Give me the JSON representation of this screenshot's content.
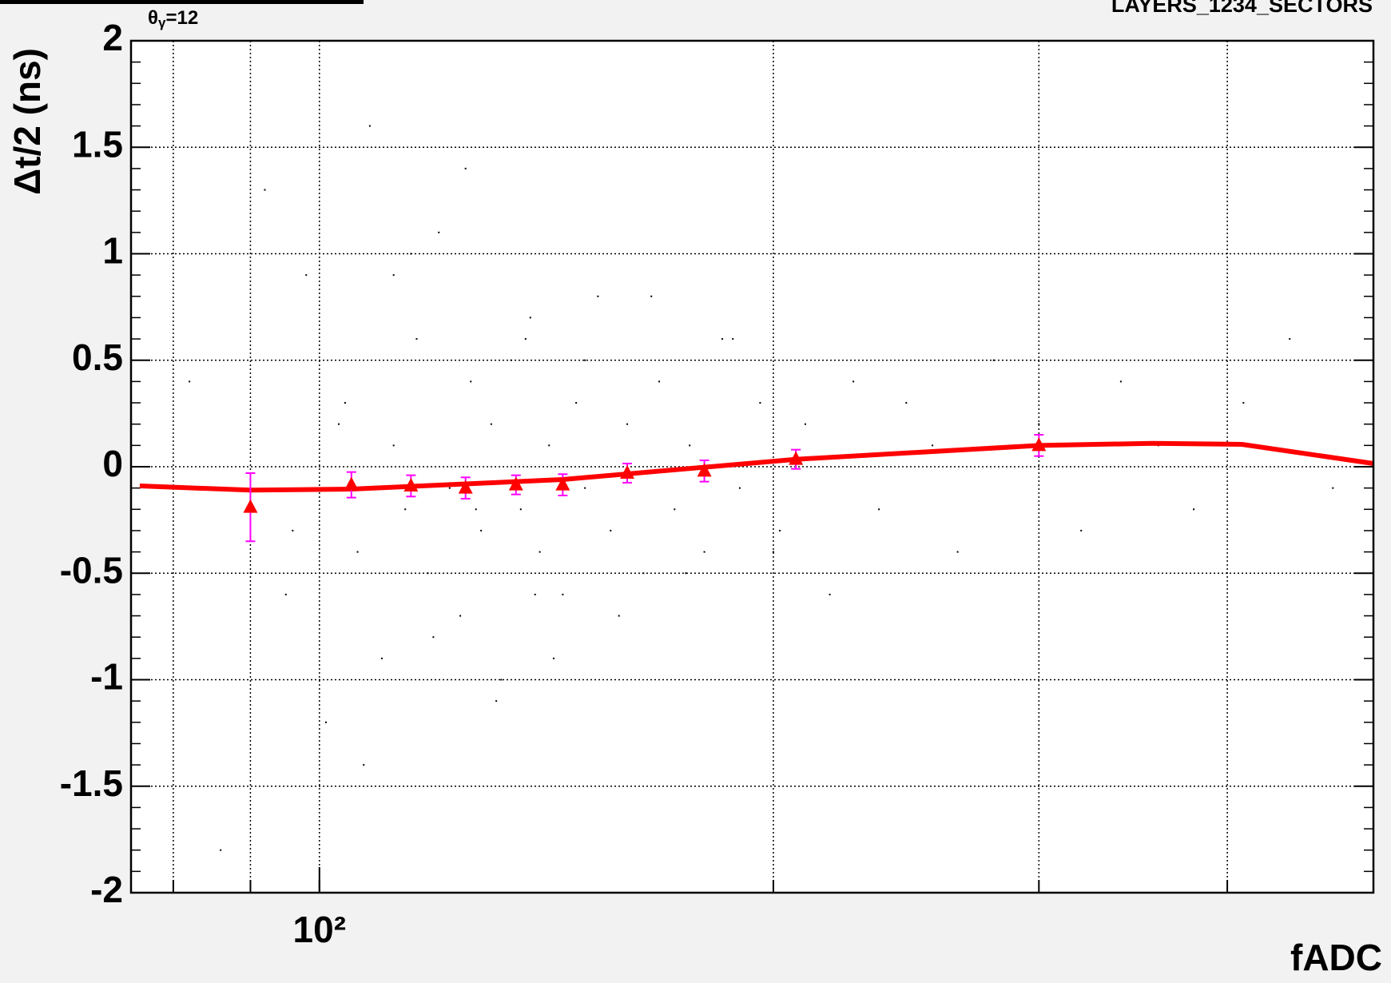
{
  "chart_data": {
    "type": "scatter",
    "annotation": {
      "symbol": "θ",
      "subscript": "γ",
      "rest": "=12"
    },
    "corner_label": "LAYERS_1234_SECTORS",
    "x_label": "fADC",
    "y_label": "Δt/2 (ns)",
    "xscale": "log",
    "xlim": [
      75,
      500
    ],
    "ylim": [
      -2,
      2
    ],
    "xticks": [
      {
        "value": 100,
        "label": "10²"
      }
    ],
    "xgrid": [
      80,
      90,
      100,
      200,
      300,
      400,
      500
    ],
    "yticks": [
      -2,
      -1.5,
      -1,
      -0.5,
      0,
      0.5,
      1,
      1.5,
      2
    ],
    "grid": true,
    "scatter": {
      "color": "#000000",
      "x": [
        82,
        86,
        92,
        95,
        98,
        101,
        104,
        106,
        108,
        110,
        112,
        114,
        116,
        118,
        120,
        122,
        124,
        126,
        128,
        130,
        132,
        134,
        136,
        138,
        140,
        142,
        145,
        148,
        150,
        153,
        156,
        160,
        164,
        168,
        172,
        176,
        180,
        185,
        190,
        196,
        202,
        210,
        218,
        226,
        235,
        245,
        255,
        265,
        280,
        300,
        320,
        340,
        360,
        380,
        410,
        440,
        470,
        107,
        112,
        119,
        125,
        131,
        137,
        143,
        150,
        158,
        166,
        175,
        188,
        200,
        96,
        103,
        115,
        127,
        139
      ],
      "y": [
        0.4,
        -1.8,
        1.3,
        -0.6,
        0.9,
        -1.2,
        0.3,
        -0.4,
        1.6,
        -0.9,
        0.1,
        -0.2,
        0.6,
        -0.5,
        1.1,
        -0.1,
        -0.7,
        0.4,
        -0.3,
        0.2,
        -1.0,
        0.5,
        -0.2,
        0.7,
        -0.4,
        0.1,
        -0.6,
        0.3,
        -0.1,
        0.8,
        -0.3,
        0.2,
        -0.5,
        0.4,
        -0.2,
        0.1,
        -0.4,
        0.6,
        -0.1,
        0.3,
        -0.3,
        0.2,
        -0.6,
        0.4,
        -0.2,
        0.3,
        0.1,
        -0.4,
        0.5,
        0.2,
        -0.3,
        0.4,
        0.1,
        -0.2,
        0.3,
        0.6,
        -0.1,
        -1.4,
        0.9,
        -0.8,
        1.4,
        -1.1,
        0.6,
        -0.9,
        0.5,
        -0.7,
        0.8,
        -0.5,
        0.6,
        -0.4,
        -0.3,
        0.2,
        1.0,
        -0.2,
        -0.6
      ]
    },
    "series": [
      {
        "name": "profile",
        "color": "#ff0000",
        "error_color": "#ff00ff",
        "x": [
          90,
          105,
          115,
          125,
          135,
          145,
          160,
          180,
          207,
          300
        ],
        "values": [
          -0.19,
          -0.085,
          -0.09,
          -0.1,
          -0.085,
          -0.085,
          -0.03,
          -0.02,
          0.035,
          0.1
        ],
        "errors": [
          0.16,
          0.06,
          0.05,
          0.05,
          0.045,
          0.05,
          0.045,
          0.05,
          0.045,
          0.05
        ]
      }
    ],
    "fit": {
      "color": "#ff0000",
      "x": [
        76,
        90,
        105,
        145,
        207,
        300,
        357,
        409,
        500
      ],
      "values": [
        -0.09,
        -0.11,
        -0.105,
        -0.06,
        0.035,
        0.1,
        0.11,
        0.105,
        0.015
      ]
    }
  }
}
